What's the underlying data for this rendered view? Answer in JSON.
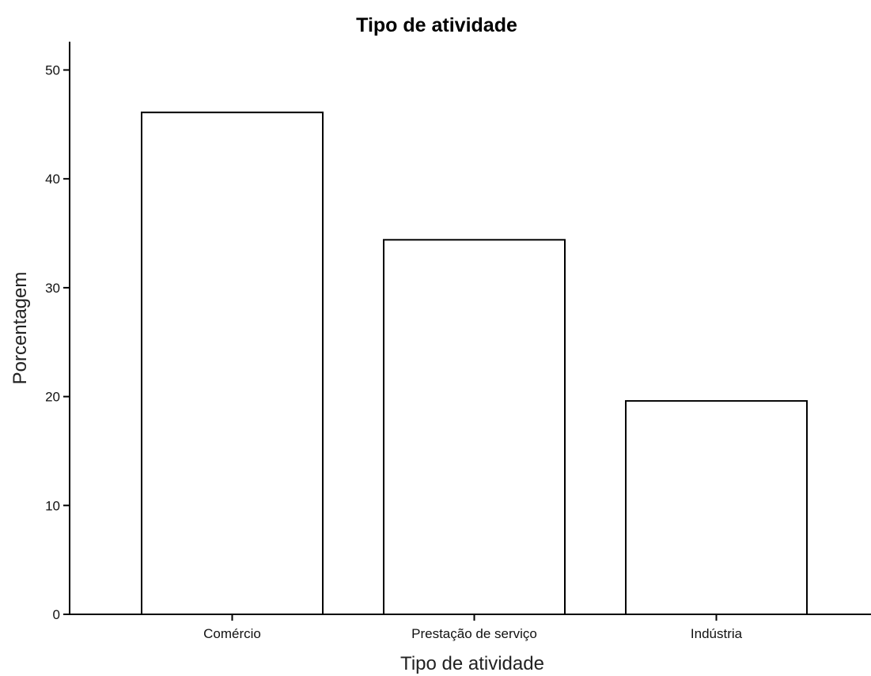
{
  "chart_data": {
    "type": "bar",
    "title": "Tipo de atividade",
    "xlabel": "Tipo de atividade",
    "ylabel": "Porcentagem",
    "categories": [
      "Comércio",
      "Prestação de serviço",
      "Indústria"
    ],
    "values": [
      46.1,
      34.4,
      19.6
    ],
    "ylim": [
      0,
      52.6
    ],
    "yticks": [
      "0",
      "10",
      "20",
      "30",
      "40",
      "50"
    ],
    "grid": false,
    "legend": "none",
    "colors": {
      "bar_fill": "#ffffff",
      "bar_stroke": "#000000",
      "axis": "#000000"
    }
  }
}
